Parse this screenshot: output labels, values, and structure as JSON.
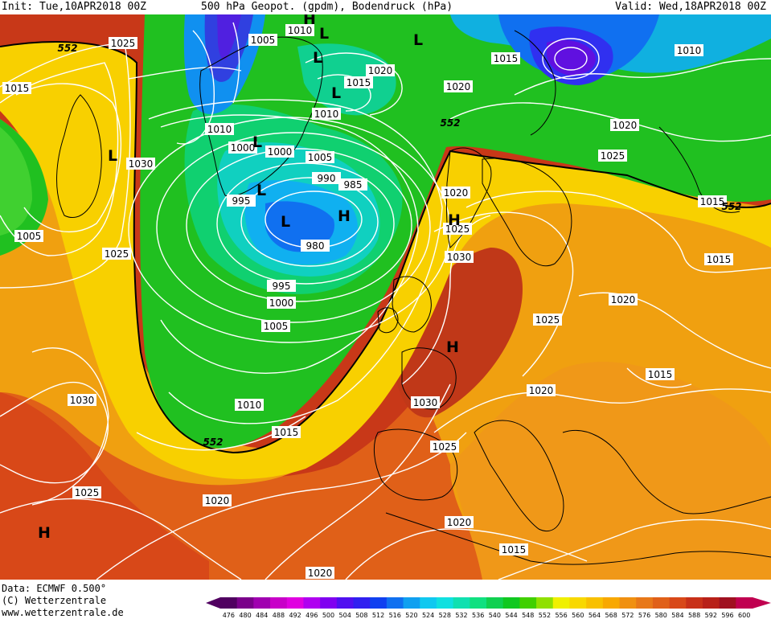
{
  "header": {
    "init": "Init: Tue,10APR2018 00Z",
    "title": "500 hPa Geopot. (gpdm), Bodendruck (hPa)",
    "valid": "Valid: Wed,18APR2018 00Z"
  },
  "footer": {
    "data_source": "Data: ECMWF   0.500°",
    "copyright": "(C) Wetterzentrale",
    "url": "www.wetterzentrale.de"
  },
  "colors": {
    "ocean_low": "#1040e0",
    "cyan": "#20d0e0",
    "green": "#10c010",
    "yellow": "#f0f000",
    "orange": "#f0a010",
    "dark_orange": "#e06010",
    "red_brown": "#c03818",
    "isobar": "#ffffff",
    "coast": "#000000"
  },
  "colorbar": {
    "ticks": [
      "476",
      "480",
      "484",
      "488",
      "492",
      "496",
      "500",
      "504",
      "508",
      "512",
      "516",
      "520",
      "524",
      "528",
      "532",
      "536",
      "540",
      "544",
      "548",
      "552",
      "556",
      "560",
      "564",
      "568",
      "572",
      "576",
      "580",
      "584",
      "588",
      "592",
      "596",
      "600"
    ],
    "colors": [
      "#500060",
      "#7a008a",
      "#a000b0",
      "#c800c8",
      "#e000e0",
      "#b000f0",
      "#8000f0",
      "#5010f0",
      "#3020f0",
      "#1040f0",
      "#1070f0",
      "#10a0f0",
      "#10c8f0",
      "#10e0e0",
      "#10e0b0",
      "#10e080",
      "#10d050",
      "#10c820",
      "#40d000",
      "#90e000",
      "#f0f000",
      "#f8d800",
      "#f8c000",
      "#f8a800",
      "#f09010",
      "#e87818",
      "#e06018",
      "#d84818",
      "#c83018",
      "#b82018",
      "#a01020",
      "#c00050"
    ]
  },
  "isobar_labels": [
    "1025",
    "1015",
    "1005",
    "1025",
    "1030",
    "1010",
    "1010",
    "1005",
    "1000",
    "1000",
    "1005",
    "995",
    "990",
    "985",
    "980",
    "995",
    "1000",
    "1005",
    "1010",
    "1015",
    "1020",
    "1025",
    "1030",
    "1020",
    "1015",
    "1010",
    "1020",
    "1025",
    "1015",
    "1015",
    "1020",
    "1025",
    "1015",
    "1020",
    "1030",
    "1025",
    "1020",
    "1015",
    "1020",
    "1020",
    "1010",
    "1015",
    "1020",
    "1025",
    "1030"
  ],
  "height_labels": [
    "552",
    "552",
    "552",
    "552"
  ],
  "pressure_centers": [
    "L",
    "L",
    "L",
    "L",
    "L",
    "L",
    "L",
    "L",
    "H",
    "H",
    "H",
    "H",
    "H",
    "H",
    "L"
  ]
}
